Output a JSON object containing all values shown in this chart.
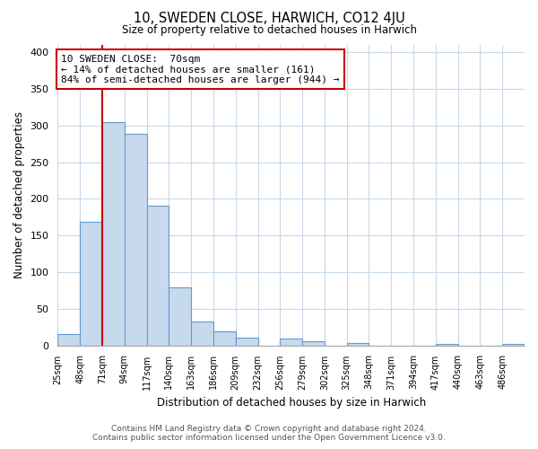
{
  "title": "10, SWEDEN CLOSE, HARWICH, CO12 4JU",
  "subtitle": "Size of property relative to detached houses in Harwich",
  "xlabel": "Distribution of detached houses by size in Harwich",
  "ylabel": "Number of detached properties",
  "bin_labels": [
    "25sqm",
    "48sqm",
    "71sqm",
    "94sqm",
    "117sqm",
    "140sqm",
    "163sqm",
    "186sqm",
    "209sqm",
    "232sqm",
    "256sqm",
    "279sqm",
    "302sqm",
    "325sqm",
    "348sqm",
    "371sqm",
    "394sqm",
    "417sqm",
    "440sqm",
    "463sqm",
    "486sqm"
  ],
  "bar_heights": [
    16,
    168,
    305,
    289,
    191,
    79,
    32,
    19,
    11,
    0,
    9,
    5,
    0,
    3,
    0,
    0,
    0,
    2,
    0,
    0,
    2
  ],
  "bar_color": "#c6d9ed",
  "bar_edge_color": "#6699cc",
  "highlight_line_color": "#cc0000",
  "annotation_line1": "10 SWEDEN CLOSE:  70sqm",
  "annotation_line2": "← 14% of detached houses are smaller (161)",
  "annotation_line3": "84% of semi-detached houses are larger (944) →",
  "ylim": [
    0,
    410
  ],
  "yticks": [
    0,
    50,
    100,
    150,
    200,
    250,
    300,
    350,
    400
  ],
  "footer_text": "Contains HM Land Registry data © Crown copyright and database right 2024.\nContains public sector information licensed under the Open Government Licence v3.0.",
  "background_color": "#ffffff",
  "grid_color": "#c8d8e8"
}
